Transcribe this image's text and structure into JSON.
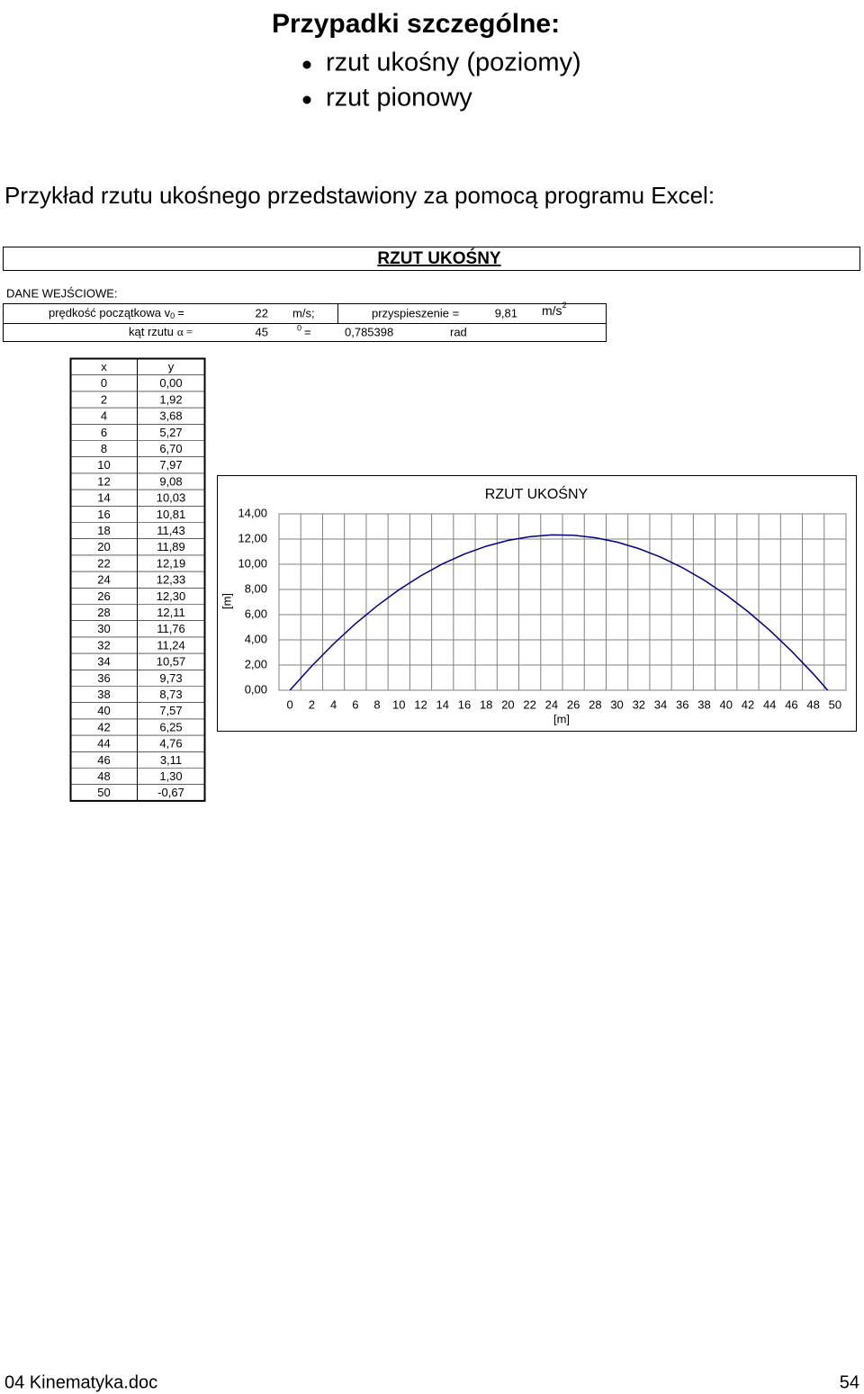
{
  "header": {
    "title": "Przypadki szczególne:",
    "bullets": [
      "rzut ukośny (poziomy)",
      "rzut pionowy"
    ]
  },
  "intro": "Przykład rzutu ukośnego przedstawiony za pomocą programu Excel:",
  "sheet_title": "RZUT UKOŚNY",
  "inputs": {
    "label": "DANE WEJŚCIOWE:",
    "velocity_label": "prędkość początkowa v",
    "velocity_sub": "0",
    "velocity_eq": "=",
    "velocity": "22",
    "velocity_unit": "m/s;",
    "accel_label": "przyspieszenie =",
    "accel": "9,81",
    "accel_unit": "m/s",
    "accel_unit_sup": "2",
    "angle_label": "kąt rzutu",
    "alpha": "α =",
    "angle": "45",
    "degree": "0",
    "angle_eq": "=",
    "radians": "0,785398",
    "rad_unit": "rad"
  },
  "table": {
    "headers": [
      "x",
      "y"
    ]
  },
  "chart_data": {
    "type": "line",
    "title": "RZUT UKOŚNY",
    "x_label": "[m]",
    "y_label": "[m]",
    "color": "#000080",
    "x": [
      0,
      2,
      4,
      6,
      8,
      10,
      12,
      14,
      16,
      18,
      20,
      22,
      24,
      26,
      28,
      30,
      32,
      34,
      36,
      38,
      40,
      42,
      44,
      46,
      48,
      50
    ],
    "values": [
      0,
      1.92,
      3.68,
      5.27,
      6.7,
      7.97,
      9.08,
      10.03,
      10.81,
      11.43,
      11.89,
      12.19,
      12.33,
      12.3,
      12.11,
      11.76,
      11.24,
      10.57,
      9.73,
      8.73,
      7.57,
      6.25,
      4.76,
      3.11,
      1.3,
      -0.67
    ],
    "value_labels": [
      "0,00",
      "1,92",
      "3,68",
      "5,27",
      "6,70",
      "7,97",
      "9,08",
      "10,03",
      "10,81",
      "11,43",
      "11,89",
      "12,19",
      "12,33",
      "12,30",
      "12,11",
      "11,76",
      "11,24",
      "10,57",
      "9,73",
      "8,73",
      "7,57",
      "6,25",
      "4,76",
      "3,11",
      "1,30",
      "-0,67"
    ],
    "xlim": [
      -1,
      51
    ],
    "xticks": [
      0,
      2,
      4,
      6,
      8,
      10,
      12,
      14,
      16,
      18,
      20,
      22,
      24,
      26,
      28,
      30,
      32,
      34,
      36,
      38,
      40,
      42,
      44,
      46,
      48,
      50
    ],
    "ylim": [
      0,
      14
    ],
    "yticks": [
      {
        "value": 0,
        "label": "0,00"
      },
      {
        "value": 2,
        "label": "2,00"
      },
      {
        "value": 4,
        "label": "4,00"
      },
      {
        "value": 6,
        "label": "6,00"
      },
      {
        "value": 8,
        "label": "8,00"
      },
      {
        "value": 10,
        "label": "10,00"
      },
      {
        "value": 12,
        "label": "12,00"
      },
      {
        "value": 14,
        "label": "14,00"
      }
    ],
    "grid": true
  },
  "footer": {
    "left": "04 Kinematyka.doc",
    "right": "54"
  }
}
